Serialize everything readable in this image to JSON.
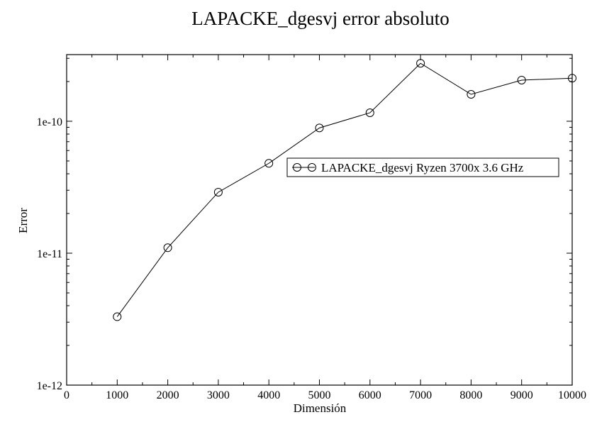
{
  "chart_data": {
    "type": "line",
    "title": "LAPACKE_dgesvj error absoluto",
    "xlabel": "Dimensión",
    "ylabel": "Error",
    "xlim": [
      0,
      10000
    ],
    "ylim": [
      1e-12,
      3.2e-10
    ],
    "y_scale": "log",
    "x_ticks": [
      0,
      1000,
      2000,
      3000,
      4000,
      5000,
      6000,
      7000,
      8000,
      9000,
      10000
    ],
    "x_tick_labels": [
      "0",
      "1000",
      "2000",
      "3000",
      "4000",
      "5000",
      "6000",
      "7000",
      "8000",
      "9000",
      "10000"
    ],
    "y_ticks": [
      1e-12,
      1e-11,
      1e-10
    ],
    "y_tick_labels": [
      "1e-12",
      "1e-11",
      "1e-10"
    ],
    "legend_position": "right",
    "grid": false,
    "colors": {
      "series": "#000000",
      "background": "#ffffff"
    },
    "series": [
      {
        "name": "LAPACKE_dgesvj Ryzen 3700x 3.6 GHz",
        "marker": "circle",
        "x": [
          1000,
          2000,
          3000,
          4000,
          5000,
          6000,
          7000,
          8000,
          9000,
          10000
        ],
        "y": [
          3.3e-12,
          1.1e-11,
          2.9e-11,
          4.8e-11,
          8.9e-11,
          1.16e-10,
          2.75e-10,
          1.6e-10,
          2.05e-10,
          2.12e-10
        ]
      }
    ]
  }
}
